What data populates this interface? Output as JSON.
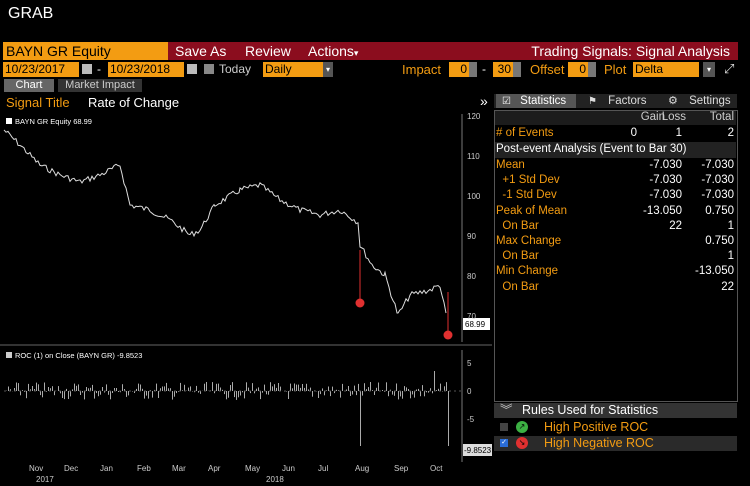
{
  "window": {
    "title": "GRAB"
  },
  "toolbar": {
    "security": "BAYN GR Equity",
    "save_as": "Save As",
    "review": "Review",
    "actions": "Actions",
    "panel_title": "Trading Signals: Signal Analysis"
  },
  "controls": {
    "start_date": "10/23/2017",
    "end_date": "10/23/2018",
    "today_label": "Today",
    "period": "Daily",
    "impact_label": "Impact",
    "impact_from": "0",
    "impact_to": "30",
    "offset_label": "Offset",
    "offset_value": "0",
    "plot_label": "Plot",
    "plot_value": "Delta"
  },
  "tabs": {
    "chart": "Chart",
    "market_impact": "Market Impact"
  },
  "signal": {
    "title_label": "Signal Title",
    "title_value": "Rate of Change"
  },
  "price_chart": {
    "legend": "BAYN GR Equity  68.99",
    "last_label": "68.99",
    "y_ticks": [
      "120",
      "110",
      "100",
      "90",
      "80",
      "70"
    ]
  },
  "roc_chart": {
    "legend": "ROC (1) on Close (BAYN GR)  -9.8523",
    "last_label": "-9.8523",
    "y_ticks": [
      "5",
      "0",
      "-5"
    ]
  },
  "x_axis": {
    "months": [
      "Nov",
      "Dec",
      "Jan",
      "Feb",
      "Mar",
      "Apr",
      "May",
      "Jun",
      "Jul",
      "Aug",
      "Sep",
      "Oct"
    ],
    "years": [
      "2017",
      "2018"
    ]
  },
  "stats_tabs": {
    "statistics": "Statistics",
    "factors": "Factors",
    "settings": "Settings"
  },
  "stats": {
    "headers": [
      "Gain",
      "Loss",
      "Total"
    ],
    "events_label": "# of Events",
    "events": [
      "0",
      "1",
      "2"
    ],
    "post_event_label": "Post-event Analysis (Event to Bar 30)",
    "rows": [
      {
        "label": "Mean",
        "gain": "",
        "loss": "-7.030",
        "total": "-7.030"
      },
      {
        "label": "  +1 Std Dev",
        "gain": "",
        "loss": "-7.030",
        "total": "-7.030"
      },
      {
        "label": "  -1 Std Dev",
        "gain": "",
        "loss": "-7.030",
        "total": "-7.030"
      },
      {
        "label": "Peak of Mean",
        "gain": "",
        "loss": "-13.050",
        "total": "0.750"
      },
      {
        "label": "  On Bar",
        "gain": "",
        "loss": "22",
        "total": "1"
      },
      {
        "label": "Max Change",
        "gain": "",
        "loss": "",
        "total": "0.750"
      },
      {
        "label": "  On Bar",
        "gain": "",
        "loss": "",
        "total": "1"
      },
      {
        "label": "Min Change",
        "gain": "",
        "loss": "",
        "total": "-13.050"
      },
      {
        "label": "  On Bar",
        "gain": "",
        "loss": "",
        "total": "22"
      }
    ]
  },
  "rules": {
    "title": "Rules Used for Statistics",
    "items": [
      {
        "label": "High Positive ROC",
        "checked": false,
        "color": "#3cb043"
      },
      {
        "label": "High Negative ROC",
        "checked": true,
        "color": "#e03030"
      }
    ]
  },
  "colors": {
    "accent": "#f39c12",
    "toolbar_red": "#8b0d1e",
    "signal_red": "#e03030"
  }
}
